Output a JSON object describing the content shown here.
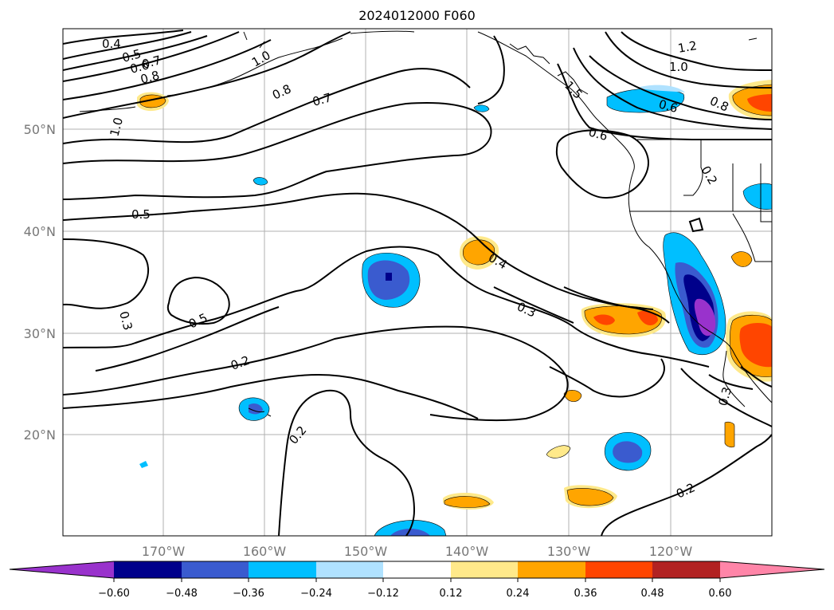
{
  "title": "2024012000 F060",
  "map": {
    "lon_labels": [
      "170°W",
      "160°W",
      "150°W",
      "140°W",
      "130°W",
      "120°W"
    ],
    "lat_labels": [
      "50°N",
      "40°N",
      "30°N",
      "20°N"
    ],
    "contour_labels": [
      "0.4",
      "0.5",
      "0.6",
      "0.7",
      "0.8",
      "1.0",
      "1.0",
      "0.8",
      "0.7",
      "1.2",
      "1.0",
      "0.8",
      "0.6",
      "1.5",
      "0.6",
      "0.5",
      "0.3",
      "0.5",
      "0.2",
      "0.4",
      "0.3",
      "0.3",
      "0.2",
      "0.2",
      "0.2"
    ]
  },
  "colorbar": {
    "tick_labels": [
      "−0.60",
      "−0.48",
      "−0.36",
      "−0.24",
      "−0.12",
      "0.12",
      "0.24",
      "0.36",
      "0.48",
      "0.60"
    ],
    "colors": [
      "#9932CC",
      "#00008B",
      "#3A5BCF",
      "#00BFFF",
      "#B0E2FF",
      "#FFFFFF",
      "#FFE98A",
      "#FFA500",
      "#FF4500",
      "#B22222",
      "#FF85A8"
    ]
  }
}
